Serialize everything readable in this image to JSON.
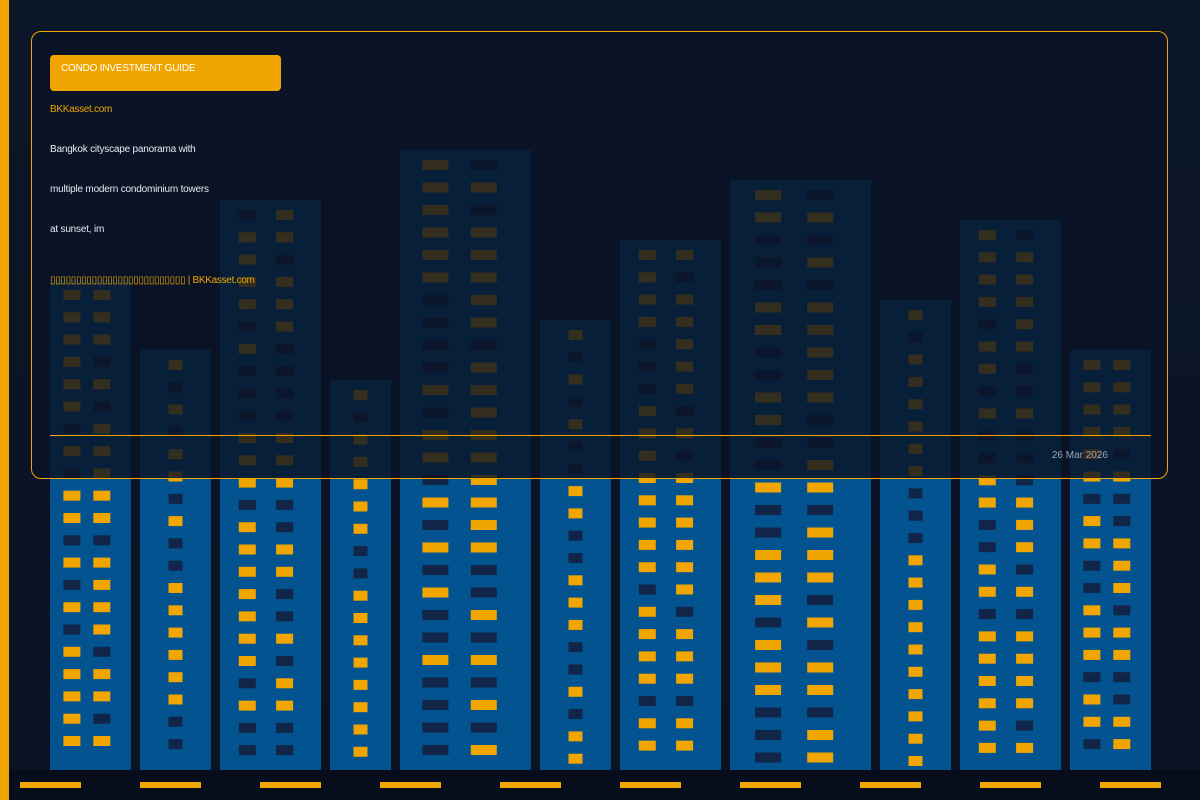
{
  "badge": "CONDO INVESTMENT GUIDE",
  "site": "BKKasset.com",
  "description_lines": [
    "Bangkok cityscape panorama with",
    "multiple modern condominium towers",
    "at sunset, im"
  ],
  "credit": "▯▯▯▯▯▯▯▯▯▯▯▯▯▯▯▯▯▯▯▯▯▯▯▯▯▯ | BKKasset.com",
  "date": "26 Mar 2026",
  "colors": {
    "background": "#0a1426",
    "tower": "#02538f",
    "window_lit": "#f0a500",
    "window_dark": "#112548",
    "accent": "#f0a500"
  }
}
